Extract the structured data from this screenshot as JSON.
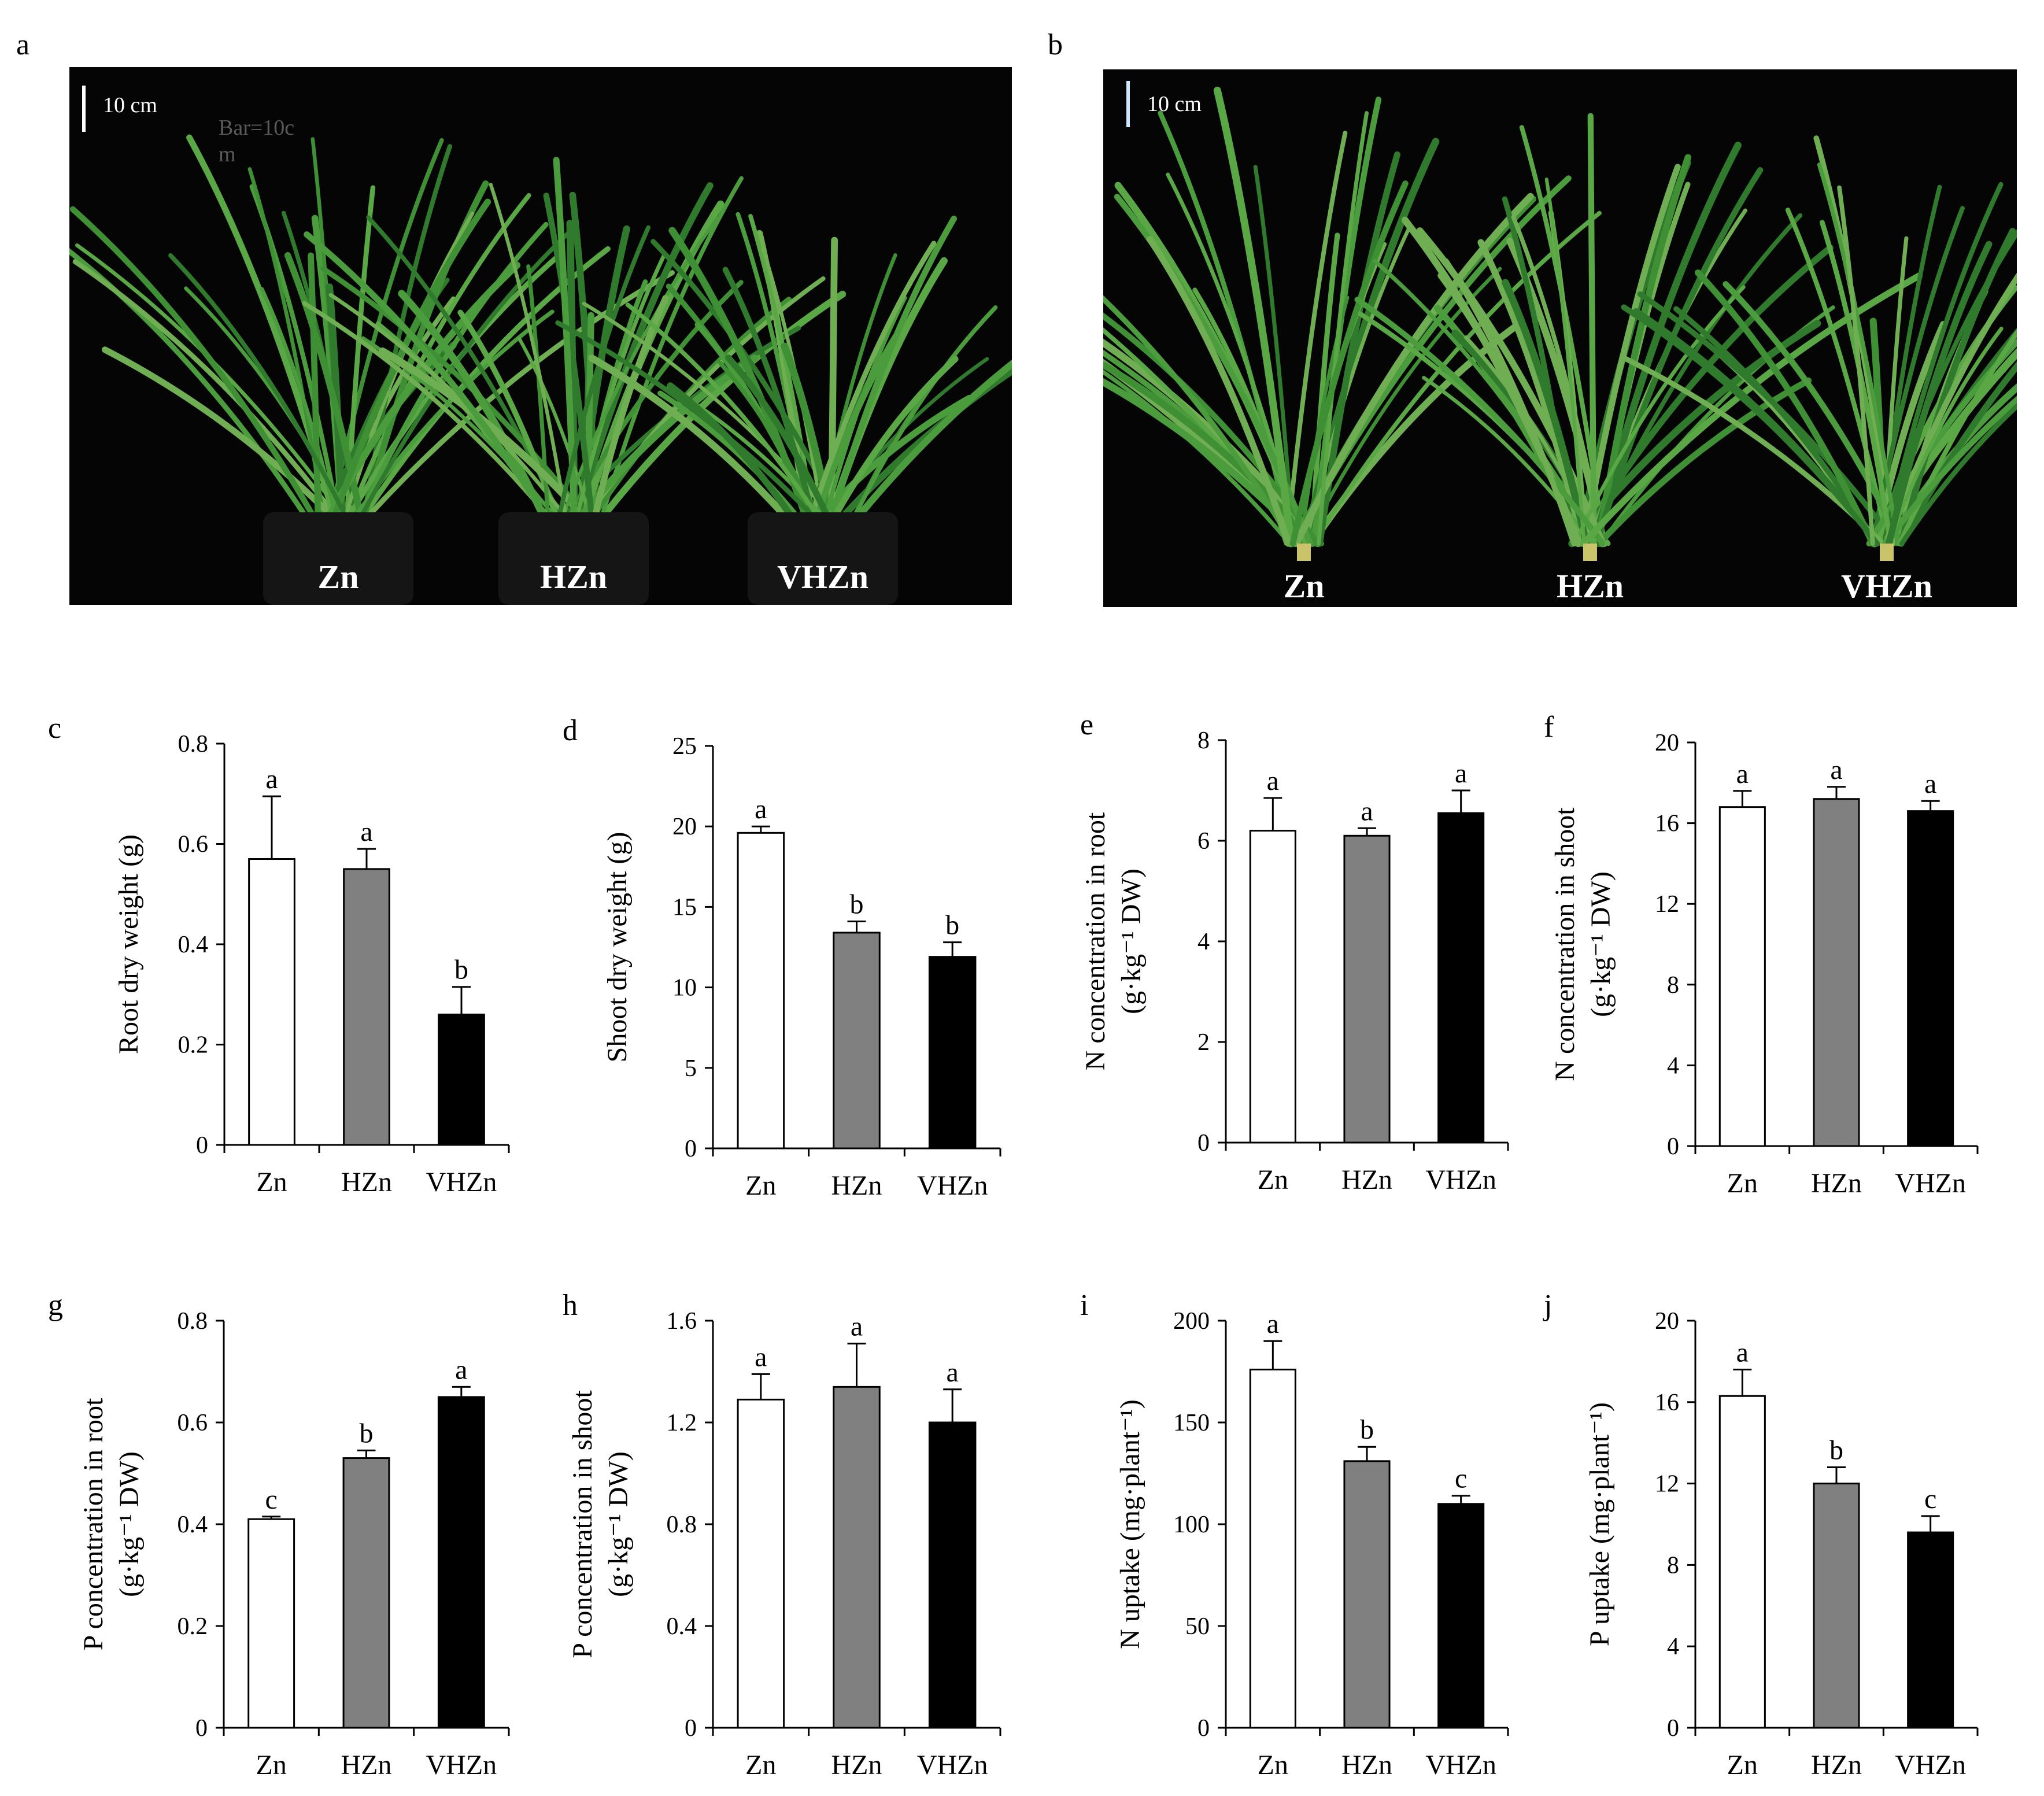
{
  "photos": [
    {
      "panel": "a",
      "scale_label": "10 cm",
      "stray_label": "Bar=10c\nm",
      "labels": [
        "Zn",
        "HZn",
        "VHZn"
      ]
    },
    {
      "panel": "b",
      "scale_label": "10 cm",
      "labels": [
        "Zn",
        "HZn",
        "VHZn"
      ]
    }
  ],
  "colors": {
    "Zn": "#ffffff",
    "HZn": "#808080",
    "VHZn": "#000000",
    "plant_green": "#3f8f34",
    "photo_bg": "#050505"
  },
  "chart_data": [
    {
      "panel": "c",
      "type": "bar",
      "categories": [
        "Zn",
        "HZn",
        "VHZn"
      ],
      "values": [
        0.57,
        0.55,
        0.26
      ],
      "errors": [
        0.125,
        0.04,
        0.055
      ],
      "letters": [
        "a",
        "a",
        "b"
      ],
      "ylabel": [
        "Root dry weight (g)"
      ],
      "ylim": [
        0,
        0.8
      ],
      "yticks": [
        0,
        0.2,
        0.4,
        0.6,
        0.8
      ],
      "ytick_labels": [
        "0",
        "0.2",
        "0.4",
        "0.6",
        "0.8"
      ]
    },
    {
      "panel": "d",
      "type": "bar",
      "categories": [
        "Zn",
        "HZn",
        "VHZn"
      ],
      "values": [
        19.6,
        13.4,
        11.9
      ],
      "errors": [
        0.4,
        0.7,
        0.9
      ],
      "letters": [
        "a",
        "b",
        "b"
      ],
      "ylabel": [
        "Shoot dry weight (g)"
      ],
      "ylim": [
        0,
        25
      ],
      "yticks": [
        0,
        5,
        10,
        15,
        20,
        25
      ],
      "ytick_labels": [
        "0",
        "5",
        "10",
        "15",
        "20",
        "25"
      ]
    },
    {
      "panel": "e",
      "type": "bar",
      "categories": [
        "Zn",
        "HZn",
        "VHZn"
      ],
      "values": [
        6.2,
        6.1,
        6.55
      ],
      "errors": [
        0.65,
        0.15,
        0.45
      ],
      "letters": [
        "a",
        "a",
        "a"
      ],
      "ylabel": [
        "N concentration in root",
        "(g·kg⁻¹ DW)"
      ],
      "ylim": [
        0,
        8
      ],
      "yticks": [
        0,
        2,
        4,
        6,
        8
      ],
      "ytick_labels": [
        "0",
        "2",
        "4",
        "6",
        "8"
      ]
    },
    {
      "panel": "f",
      "type": "bar",
      "categories": [
        "Zn",
        "HZn",
        "VHZn"
      ],
      "values": [
        16.8,
        17.2,
        16.6
      ],
      "errors": [
        0.8,
        0.6,
        0.5
      ],
      "letters": [
        "a",
        "a",
        "a"
      ],
      "ylabel": [
        "N concentration in shoot",
        "(g·kg⁻¹ DW)"
      ],
      "ylim": [
        0,
        20
      ],
      "yticks": [
        0,
        4,
        8,
        12,
        16,
        20
      ],
      "ytick_labels": [
        "0",
        "4",
        "8",
        "12",
        "16",
        "20"
      ]
    },
    {
      "panel": "g",
      "type": "bar",
      "categories": [
        "Zn",
        "HZn",
        "VHZn"
      ],
      "values": [
        0.41,
        0.53,
        0.65
      ],
      "errors": [
        0.005,
        0.015,
        0.02
      ],
      "letters": [
        "c",
        "b",
        "a"
      ],
      "ylabel": [
        "P concentration in root",
        "(g·kg⁻¹ DW)"
      ],
      "ylim": [
        0,
        0.8
      ],
      "yticks": [
        0,
        0.2,
        0.4,
        0.6,
        0.8
      ],
      "ytick_labels": [
        "0",
        "0.2",
        "0.4",
        "0.6",
        "0.8"
      ]
    },
    {
      "panel": "h",
      "type": "bar",
      "categories": [
        "Zn",
        "HZn",
        "VHZn"
      ],
      "values": [
        1.29,
        1.34,
        1.2
      ],
      "errors": [
        0.1,
        0.17,
        0.13
      ],
      "letters": [
        "a",
        "a",
        "a"
      ],
      "ylabel": [
        "P concentration in shoot",
        "(g·kg⁻¹ DW)"
      ],
      "ylim": [
        0,
        1.6
      ],
      "yticks": [
        0,
        0.4,
        0.8,
        1.2,
        1.6
      ],
      "ytick_labels": [
        "0",
        "0.4",
        "0.8",
        "1.2",
        "1.6"
      ]
    },
    {
      "panel": "i",
      "type": "bar",
      "categories": [
        "Zn",
        "HZn",
        "VHZn"
      ],
      "values": [
        176,
        131,
        110
      ],
      "errors": [
        14,
        7,
        4
      ],
      "letters": [
        "a",
        "b",
        "c"
      ],
      "ylabel": [
        "N uptake (mg·plant⁻¹)"
      ],
      "ylim": [
        0,
        200
      ],
      "yticks": [
        0,
        50,
        100,
        150,
        200
      ],
      "ytick_labels": [
        "0",
        "50",
        "100",
        "150",
        "200"
      ]
    },
    {
      "panel": "j",
      "type": "bar",
      "categories": [
        "Zn",
        "HZn",
        "VHZn"
      ],
      "values": [
        16.3,
        12.0,
        9.6
      ],
      "errors": [
        1.3,
        0.8,
        0.8
      ],
      "letters": [
        "a",
        "b",
        "c"
      ],
      "ylabel": [
        "P uptake (mg·plant⁻¹)"
      ],
      "ylim": [
        0,
        20
      ],
      "yticks": [
        0,
        4,
        8,
        12,
        16,
        20
      ],
      "ytick_labels": [
        "0",
        "4",
        "8",
        "12",
        "16",
        "20"
      ]
    }
  ]
}
